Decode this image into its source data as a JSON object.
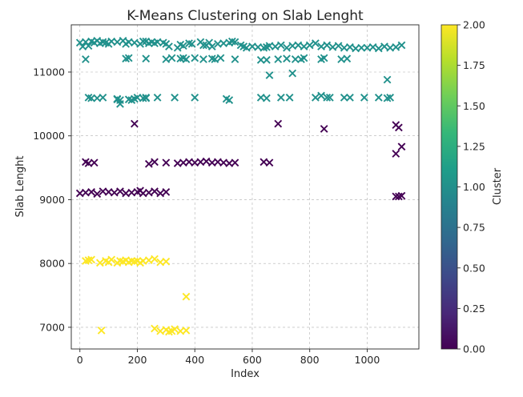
{
  "chart_data": {
    "type": "scatter",
    "title": "K-Means Clustering on Slab Lenght",
    "xlabel": "Index",
    "ylabel": "Slab Lenght",
    "xlim": [
      -30,
      1180
    ],
    "ylim": [
      6660,
      11740
    ],
    "xticks": [
      0,
      200,
      400,
      600,
      800,
      1000
    ],
    "yticks": [
      7000,
      8000,
      9000,
      10000,
      11000
    ],
    "grid": true,
    "marker": "x",
    "colorbar": {
      "label": "Cluster",
      "min": 0.0,
      "max": 2.0,
      "ticks": [
        "0.00",
        "0.25",
        "0.50",
        "0.75",
        "1.00",
        "1.25",
        "1.50",
        "1.75",
        "2.00"
      ],
      "colormap": "viridis",
      "stops": [
        "#440154",
        "#482878",
        "#3e4989",
        "#31688e",
        "#26828e",
        "#1f9e89",
        "#35b779",
        "#6ece58",
        "#b5de2b",
        "#fde725"
      ]
    },
    "cluster_colors": {
      "0": "#440154",
      "1": "#21918c",
      "2": "#fde725"
    },
    "series": [
      {
        "cluster": 1,
        "x": [
          0,
          10,
          20,
          30,
          40,
          50,
          60,
          70,
          80,
          90,
          100,
          110,
          130,
          150,
          160,
          170,
          190,
          210,
          220,
          230,
          240,
          250,
          260,
          270,
          290,
          300,
          310,
          340,
          350,
          360,
          380,
          390,
          420,
          430,
          440,
          450,
          460,
          480,
          500,
          520,
          530,
          540,
          560,
          570,
          580,
          600,
          620,
          640,
          650,
          660,
          680,
          700,
          720,
          740,
          760,
          780,
          800,
          820,
          840,
          860,
          880,
          900,
          920,
          940,
          960,
          980,
          1000,
          1020,
          1040,
          1060,
          1080,
          1100,
          1120,
          20,
          160,
          170,
          230,
          300,
          320,
          350,
          360,
          370,
          400,
          430,
          460,
          470,
          490,
          540,
          630,
          650,
          690,
          720,
          750,
          770,
          780,
          840,
          850,
          910,
          930,
          30,
          40,
          60,
          80,
          130,
          140,
          200,
          220,
          230,
          270,
          510,
          520,
          630,
          660,
          700,
          740,
          820,
          840,
          860,
          870,
          920,
          940,
          990,
          1040,
          1070,
          1080,
          130,
          140,
          170,
          180,
          190,
          230,
          330,
          400,
          650,
          730,
          1070
        ],
        "y": [
          11460,
          11400,
          11470,
          11410,
          11480,
          11460,
          11490,
          11450,
          11470,
          11460,
          11440,
          11480,
          11470,
          11490,
          11440,
          11470,
          11460,
          11440,
          11480,
          11480,
          11450,
          11470,
          11450,
          11470,
          11460,
          11440,
          11400,
          11380,
          11430,
          11410,
          11450,
          11440,
          11470,
          11420,
          11420,
          11460,
          11400,
          11440,
          11450,
          11460,
          11480,
          11470,
          11420,
          11400,
          11380,
          11400,
          11390,
          11380,
          11390,
          11410,
          11400,
          11420,
          11380,
          11410,
          11420,
          11400,
          11420,
          11450,
          11400,
          11420,
          11390,
          11410,
          11380,
          11390,
          11370,
          11380,
          11380,
          11390,
          11370,
          11400,
          11380,
          11390,
          11420,
          11200,
          11210,
          11220,
          11210,
          11200,
          11220,
          11210,
          11220,
          11200,
          11220,
          11200,
          11210,
          11200,
          11220,
          11200,
          11190,
          11190,
          11200,
          11210,
          11200,
          11200,
          11220,
          11200,
          11220,
          11200,
          11210,
          10600,
          10590,
          10590,
          10600,
          10580,
          10500,
          10600,
          10590,
          10590,
          10600,
          10580,
          10560,
          10600,
          10950,
          10600,
          10980,
          10600,
          10630,
          10600,
          10600,
          10600,
          10600,
          10600,
          10600,
          10590,
          10600,
          10570,
          10560,
          10570,
          10560,
          10580,
          10600,
          10600,
          10600,
          10590,
          10600,
          10880
        ]
      },
      {
        "cluster": 0,
        "x": [
          0,
          20,
          40,
          60,
          80,
          100,
          120,
          140,
          160,
          180,
          200,
          210,
          220,
          240,
          260,
          280,
          300,
          20,
          30,
          50,
          240,
          260,
          300,
          340,
          360,
          380,
          400,
          420,
          440,
          460,
          480,
          500,
          520,
          540,
          640,
          660,
          190,
          690,
          850,
          1100,
          1110,
          1100,
          1120,
          1100,
          1110,
          1120
        ],
        "y": [
          9100,
          9110,
          9120,
          9090,
          9130,
          9120,
          9110,
          9130,
          9100,
          9110,
          9120,
          9140,
          9100,
          9110,
          9130,
          9100,
          9120,
          9590,
          9570,
          9580,
          9560,
          9590,
          9580,
          9570,
          9580,
          9590,
          9580,
          9590,
          9600,
          9580,
          9590,
          9580,
          9570,
          9580,
          9590,
          9580,
          10190,
          10190,
          10110,
          10170,
          10130,
          9720,
          9830,
          9050,
          9050,
          9060
        ]
      },
      {
        "cluster": 2,
        "x": [
          20,
          30,
          40,
          70,
          90,
          100,
          110,
          130,
          140,
          150,
          160,
          170,
          180,
          190,
          200,
          210,
          220,
          240,
          260,
          280,
          300,
          75,
          260,
          280,
          300,
          310,
          320,
          330,
          350,
          370,
          370
        ],
        "y": [
          8040,
          8050,
          8060,
          8010,
          8040,
          8020,
          8060,
          8010,
          8040,
          8030,
          8050,
          8020,
          8040,
          8030,
          8040,
          8010,
          8040,
          8050,
          8070,
          8020,
          8030,
          6950,
          6980,
          6940,
          6960,
          6930,
          6940,
          6970,
          6940,
          6950,
          7480
        ]
      }
    ]
  }
}
